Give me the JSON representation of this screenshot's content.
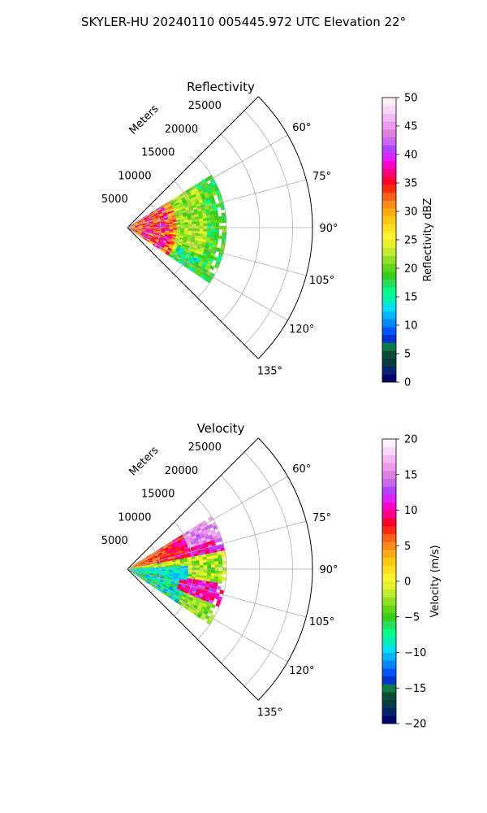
{
  "figure": {
    "suptitle": "SKYLER-HU  20240110  005445.972 UTC Elevation 22°"
  },
  "chart_data": [
    {
      "type": "heatmap",
      "projection": "polar-sector",
      "title": "Reflectivity",
      "radial_label": "Meters",
      "radial_ticks": [
        5000,
        10000,
        15000,
        20000,
        25000
      ],
      "radial_tick_labels": [
        "5000",
        "10000",
        "15000",
        "20000",
        "25000"
      ],
      "rlim": [
        0,
        28000
      ],
      "angle_range_deg": [
        45,
        135
      ],
      "angle_ticks_deg": [
        60,
        75,
        90,
        105,
        120,
        135
      ],
      "angle_tick_labels": [
        "60°",
        "75°",
        "90°",
        "105°",
        "120°",
        "135°"
      ],
      "angle_gridlines_deg": [
        45,
        60,
        75,
        90,
        105,
        120,
        135
      ],
      "grid": true,
      "data_coverage": {
        "range_max_m": 15000,
        "azimuth_deg": [
          58,
          124
        ]
      },
      "colorbar": {
        "label": "Reflectivity dBZ",
        "vmin": 0,
        "vmax": 50,
        "ticks": [
          0,
          5,
          10,
          15,
          20,
          25,
          30,
          35,
          40,
          45,
          50
        ],
        "tick_labels": [
          "0",
          "5",
          "10",
          "15",
          "20",
          "25",
          "30",
          "35",
          "40",
          "45",
          "50"
        ],
        "colors": [
          "#05056e",
          "#06246b",
          "#083c42",
          "#0b4d37",
          "#0d7a4c",
          "#0033cc",
          "#0055ff",
          "#0088ff",
          "#00b6ff",
          "#00e0f0",
          "#00f0b0",
          "#00ff88",
          "#22e05a",
          "#3acd1e",
          "#62d616",
          "#90e024",
          "#c2ec2e",
          "#e4f22e",
          "#fef22c",
          "#ffe01a",
          "#ffc810",
          "#ffaa10",
          "#ff8a18",
          "#ff6018",
          "#ff2a10",
          "#ff0030",
          "#ff0080",
          "#ff00cc",
          "#dd22ff",
          "#b044ff",
          "#cc66ee",
          "#e07fe0",
          "#ee99ee",
          "#f4b8f4",
          "#fad7fa",
          "#fff0fc"
        ]
      }
    },
    {
      "type": "heatmap",
      "projection": "polar-sector",
      "title": "Velocity",
      "radial_label": "Meters",
      "radial_ticks": [
        5000,
        10000,
        15000,
        20000,
        25000
      ],
      "radial_tick_labels": [
        "5000",
        "10000",
        "15000",
        "20000",
        "25000"
      ],
      "rlim": [
        0,
        28000
      ],
      "angle_range_deg": [
        45,
        135
      ],
      "angle_ticks_deg": [
        60,
        75,
        90,
        105,
        120,
        135
      ],
      "angle_tick_labels": [
        "60°",
        "75°",
        "90°",
        "105°",
        "120°",
        "135°"
      ],
      "angle_gridlines_deg": [
        45,
        60,
        75,
        90,
        105,
        120,
        135
      ],
      "grid": true,
      "data_coverage": {
        "range_max_m": 15000,
        "azimuth_deg": [
          58,
          124
        ]
      },
      "colorbar": {
        "label": "Velocity (m/s)",
        "vmin": -20,
        "vmax": 20,
        "ticks": [
          -20,
          -15,
          -10,
          -5,
          0,
          5,
          10,
          15,
          20
        ],
        "tick_labels": [
          "−20",
          "−15",
          "−10",
          "−5",
          "0",
          "5",
          "10",
          "15",
          "20"
        ],
        "colors": [
          "#05056e",
          "#06246b",
          "#083c42",
          "#0b4d37",
          "#0d7a4c",
          "#0033cc",
          "#0055ff",
          "#0088ff",
          "#00b6ff",
          "#00e0f0",
          "#00f0b0",
          "#00ff88",
          "#22e05a",
          "#3acd1e",
          "#62d616",
          "#90e024",
          "#c2ec2e",
          "#e4f22e",
          "#fef22c",
          "#ffe01a",
          "#ffc810",
          "#ffaa10",
          "#ff8a18",
          "#ff6018",
          "#ff2a10",
          "#ff0030",
          "#ff0080",
          "#ff00cc",
          "#dd22ff",
          "#b044ff",
          "#cc66ee",
          "#e07fe0",
          "#ee99ee",
          "#f4b8f4",
          "#fad7fa",
          "#fff0fc"
        ]
      }
    }
  ]
}
